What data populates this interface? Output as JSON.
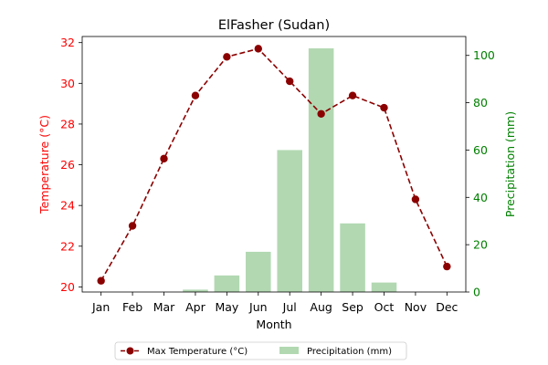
{
  "chart_data": {
    "type": "bar+line",
    "title": "ElFasher (Sudan)",
    "xlabel": "Month",
    "ylabel_left": "Temperature (°C)",
    "ylabel_right": "Precipitation (mm)",
    "categories": [
      "Jan",
      "Feb",
      "Mar",
      "Apr",
      "May",
      "Jun",
      "Jul",
      "Aug",
      "Sep",
      "Oct",
      "Nov",
      "Dec"
    ],
    "ylim_left": [
      19.75,
      32.3
    ],
    "yticks_left": [
      20,
      22,
      24,
      26,
      28,
      30,
      32
    ],
    "ylim_right": [
      0,
      108
    ],
    "yticks_right": [
      0,
      20,
      40,
      60,
      80,
      100
    ],
    "series": [
      {
        "name": "Max Temperature (°C)",
        "axis": "left",
        "type": "line",
        "style": "dashed",
        "color": "#8b0000",
        "values": [
          20.3,
          23.0,
          26.3,
          29.4,
          31.3,
          31.7,
          30.1,
          28.5,
          29.4,
          28.8,
          24.3,
          21.0
        ]
      },
      {
        "name": "Precipitation (mm)",
        "axis": "right",
        "type": "bar",
        "color": "#b2d8b2",
        "values": [
          0,
          0,
          0,
          1,
          7,
          17,
          60,
          103,
          29,
          4,
          0,
          0
        ]
      }
    ],
    "left_axis_color": "#ff0000",
    "right_axis_color": "#008000",
    "legend_position": "bottom-center",
    "grid": false
  }
}
